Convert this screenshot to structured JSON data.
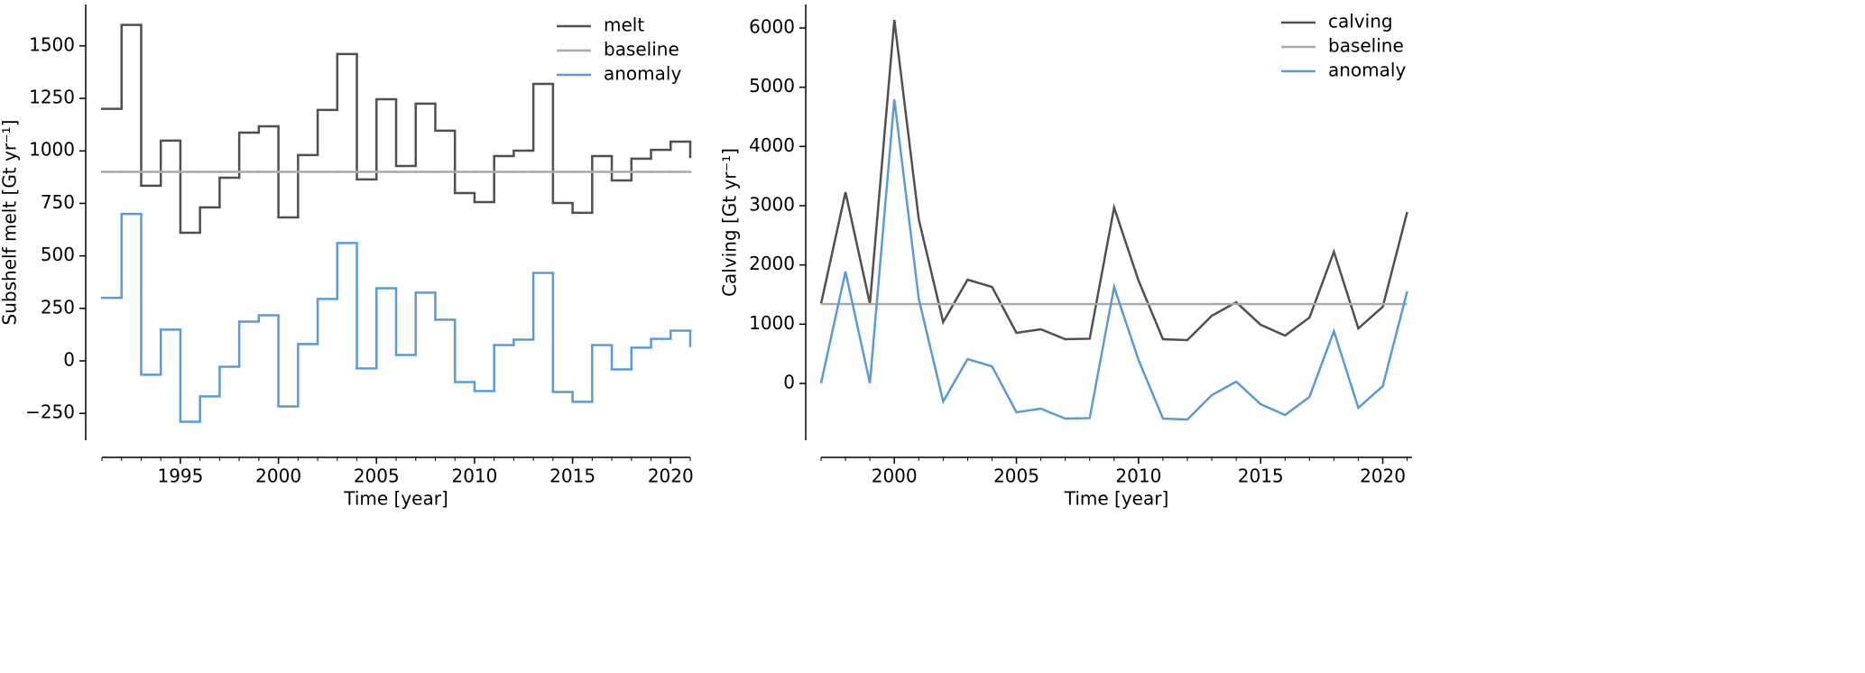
{
  "chart_data": [
    {
      "type": "step",
      "xlabel": "Time [year]",
      "ylabel": "Subshelf melt [Gt yr⁻¹]",
      "x": [
        1991,
        1992,
        1993,
        1994,
        1995,
        1996,
        1997,
        1998,
        1999,
        2000,
        2001,
        2002,
        2003,
        2004,
        2005,
        2006,
        2007,
        2008,
        2009,
        2010,
        2011,
        2012,
        2013,
        2014,
        2015,
        2016,
        2017,
        2018,
        2019,
        2020,
        2021
      ],
      "series": [
        {
          "name": "melt",
          "color": "#505050",
          "values": [
            1200,
            1600,
            834,
            1049,
            610,
            731,
            872,
            1087,
            1117,
            683,
            980,
            1195,
            1461,
            864,
            1246,
            928,
            1225,
            1096,
            799,
            756,
            975,
            1001,
            1319,
            752,
            705,
            975,
            859,
            963,
            1005,
            1044,
            971
          ]
        },
        {
          "name": "baseline",
          "color": "#aaaaaa",
          "values": [
            900,
            900,
            900,
            900,
            900,
            900,
            900,
            900,
            900,
            900,
            900,
            900,
            900,
            900,
            900,
            900,
            900,
            900,
            900,
            900,
            900,
            900,
            900,
            900,
            900,
            900,
            900,
            900,
            900,
            900,
            900
          ]
        },
        {
          "name": "anomaly",
          "color": "#5b9bd5",
          "values": [
            300,
            700,
            -66,
            149,
            -290,
            -169,
            -28,
            187,
            217,
            -217,
            80,
            295,
            561,
            -36,
            346,
            28,
            325,
            196,
            -101,
            -144,
            75,
            101,
            419,
            -148,
            -195,
            75,
            -41,
            63,
            105,
            144,
            71
          ]
        }
      ],
      "xlim": [
        1991,
        2021
      ],
      "ylim": [
        -378,
        1697
      ],
      "xticks": [
        1995,
        2000,
        2005,
        2010,
        2015,
        2020
      ],
      "xminorticks": [
        1991,
        1992,
        1993,
        1994,
        1995,
        1996,
        1997,
        1998,
        1999,
        2000,
        2001,
        2002,
        2003,
        2004,
        2005,
        2006,
        2007,
        2008,
        2009,
        2010,
        2011,
        2012,
        2013,
        2014,
        2015,
        2016,
        2017,
        2018,
        2019,
        2020,
        2021
      ],
      "yticks": [
        {
          "value": -250,
          "label": "−250"
        },
        0,
        250,
        500,
        750,
        1000,
        1250,
        1500
      ],
      "legend": "upper right"
    },
    {
      "type": "line",
      "xlabel": "Time [year]",
      "ylabel": "Calving [Gt yr⁻¹]",
      "x": [
        1997,
        1998,
        1999,
        2000,
        2001,
        2002,
        2003,
        2004,
        2005,
        2006,
        2007,
        2008,
        2009,
        2010,
        2011,
        2012,
        2013,
        2014,
        2015,
        2016,
        2017,
        2018,
        2019,
        2020,
        2021
      ],
      "series": [
        {
          "name": "calving",
          "color": "#505050",
          "values": [
            1345,
            3228,
            1345,
            6137,
            2771,
            1035,
            1751,
            1629,
            853,
            914,
            746,
            755,
            2969,
            1736,
            746,
            731,
            1142,
            1370,
            990,
            807,
            1112,
            2223,
            929,
            1294,
            2893
          ]
        },
        {
          "name": "baseline",
          "color": "#aaaaaa",
          "values": [
            1340,
            1340,
            1340,
            1340,
            1340,
            1340,
            1340,
            1340,
            1340,
            1340,
            1340,
            1340,
            1340,
            1340,
            1340,
            1340,
            1340,
            1340,
            1340,
            1340,
            1340,
            1340,
            1340,
            1340,
            1340
          ]
        },
        {
          "name": "anomaly",
          "color": "#5b9bd5",
          "values": [
            5,
            1888,
            5,
            4797,
            1431,
            -305,
            411,
            289,
            -487,
            -426,
            -594,
            -585,
            1629,
            396,
            -594,
            -609,
            -198,
            30,
            -350,
            -533,
            -228,
            883,
            -411,
            -46,
            1553
          ]
        }
      ],
      "xlim": [
        1997,
        2021.2
      ],
      "ylim": [
        -959,
        6396
      ],
      "xticks": [
        2000,
        2005,
        2010,
        2015,
        2020
      ],
      "xminorticks": [
        1997,
        1998,
        1999,
        2000,
        2001,
        2002,
        2003,
        2004,
        2005,
        2006,
        2007,
        2008,
        2009,
        2010,
        2011,
        2012,
        2013,
        2014,
        2015,
        2016,
        2017,
        2018,
        2019,
        2020,
        2021
      ],
      "yticks": [
        0,
        1000,
        2000,
        3000,
        4000,
        5000,
        6000
      ],
      "legend": "upper right"
    }
  ]
}
